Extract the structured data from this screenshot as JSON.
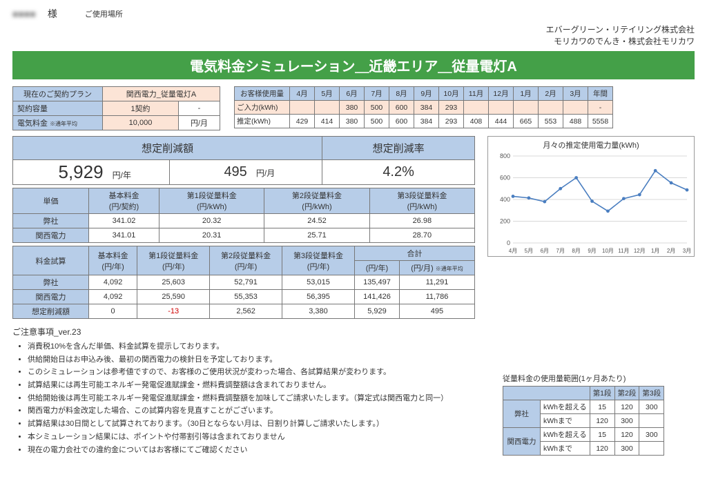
{
  "header": {
    "customer_name_blur": "■■■■",
    "customer_suffix": "　様",
    "location_label": "ご使用場所",
    "company_lines": [
      "エバーグリーン・リテイリング株式会社",
      "モリカワのでんき・株式会社モリカワ"
    ],
    "title": "電気料金シミュレーション＿近畿エリア＿従量電灯A"
  },
  "plan_table": {
    "rows": [
      {
        "label": "現在のご契約プラン",
        "val": "関西電力_従量電灯A",
        "unit": ""
      },
      {
        "label": "契約容量",
        "val": "1契約",
        "unit": "-"
      },
      {
        "label": "電気料金",
        "sup": "※通年平均",
        "val": "10,000",
        "unit": "円/月"
      }
    ]
  },
  "usage_table": {
    "row_labels": [
      "お客様使用量",
      "ご入力(kWh)",
      "推定(kWh)"
    ],
    "months": [
      "4月",
      "5月",
      "6月",
      "7月",
      "8月",
      "9月",
      "10月",
      "11月",
      "12月",
      "1月",
      "2月",
      "3月",
      "年間"
    ],
    "input": [
      "",
      "",
      "380",
      "500",
      "600",
      "384",
      "293",
      "",
      "",
      "",
      "",
      "",
      "-"
    ],
    "est": [
      "429",
      "414",
      "380",
      "500",
      "600",
      "384",
      "293",
      "408",
      "444",
      "665",
      "553",
      "488",
      "5558"
    ]
  },
  "savings": {
    "header_reduce_amount": "想定削減額",
    "header_reduce_rate": "想定削減率",
    "annual_val": "5,929",
    "annual_unit": "円/年",
    "monthly_val": "495",
    "monthly_unit": "円/月",
    "rate": "4.2%"
  },
  "unit_price": {
    "cols": [
      "単価",
      "基本料金\n(円/契約)",
      "第1段従量料金\n(円/kWh)",
      "第2段従量料金\n(円/kWh)",
      "第3段従量料金\n(円/kWh)"
    ],
    "rows": [
      {
        "label": "弊社",
        "v": [
          "341.02",
          "20.32",
          "24.52",
          "26.98"
        ]
      },
      {
        "label": "関西電力",
        "v": [
          "341.01",
          "20.31",
          "25.71",
          "28.70"
        ]
      }
    ]
  },
  "calc": {
    "cols": [
      "料金試算",
      "基本料金\n(円/年)",
      "第1段従量料金\n(円/年)",
      "第2段従量料金\n(円/年)",
      "第3段従量料金\n(円/年)",
      "合計\n(円/年)",
      "(円/月)",
      "avg_note"
    ],
    "avg_note": "※通年平均",
    "rows": [
      {
        "label": "弊社",
        "v": [
          "4,092",
          "25,603",
          "52,791",
          "53,015",
          "135,497",
          "11,291"
        ]
      },
      {
        "label": "関西電力",
        "v": [
          "4,092",
          "25,590",
          "55,353",
          "56,395",
          "141,426",
          "11,786"
        ]
      },
      {
        "label": "想定削減額",
        "v": [
          "0",
          "-13",
          "2,562",
          "3,380",
          "5,929",
          "495"
        ],
        "neg_idx": 1
      }
    ]
  },
  "chart": {
    "title": "月々の推定使用電力量(kWh)",
    "y_ticks": [
      0,
      200,
      400,
      600,
      800
    ],
    "x_labels": [
      "4月",
      "5月",
      "6月",
      "7月",
      "8月",
      "9月",
      "10月",
      "11月",
      "12月",
      "1月",
      "2月",
      "3月"
    ],
    "values": [
      429,
      414,
      380,
      500,
      600,
      384,
      293,
      408,
      444,
      665,
      553,
      488
    ],
    "line_color": "#4a7ec0",
    "grid_color": "#d8d8d8",
    "bg": "#ffffff",
    "y_max": 800
  },
  "notes": {
    "title": "ご注意事項_ver.23",
    "items": [
      "消費税10%を含んだ単価、料金試算を提示しております。",
      "供給開始日はお申込み後、最初の関西電力の検針日を予定しております。",
      "このシミュレーションは参考値ですので、お客様のご使用状況が変わった場合、各試算結果が変わります。",
      "試算結果には再生可能エネルギー発電促進賦課金・燃料費調整額は含まれておりません。",
      "供給開始後は再生可能エネルギー発電促進賦課金・燃料費調整額を加味してご請求いたします。（算定式は関西電力と同一）",
      "関西電力が料金改定した場合、この試算内容を見直すことがございます。",
      "試算結果は30日間として試算されております。（30日とならない月は、日割り計算しご請求いたします。）",
      "本シミュレーション結果には、ポイントや付帯割引等は含まれておりません",
      "現在の電力会社での違約金についてはお客様にてご確認ください"
    ]
  },
  "range": {
    "title": "従量料金の使用量範囲(1ヶ月あたり)",
    "cols": [
      "第1段",
      "第2段",
      "第3段"
    ],
    "exceed": "kWhを超える",
    "upto": "kWhまで",
    "rows": [
      {
        "label": "弊社",
        "r": [
          [
            "15",
            "120",
            "300"
          ],
          [
            "120",
            "300",
            ""
          ]
        ]
      },
      {
        "label": "関西電力",
        "r": [
          [
            "15",
            "120",
            "300"
          ],
          [
            "120",
            "300",
            ""
          ]
        ]
      }
    ]
  }
}
